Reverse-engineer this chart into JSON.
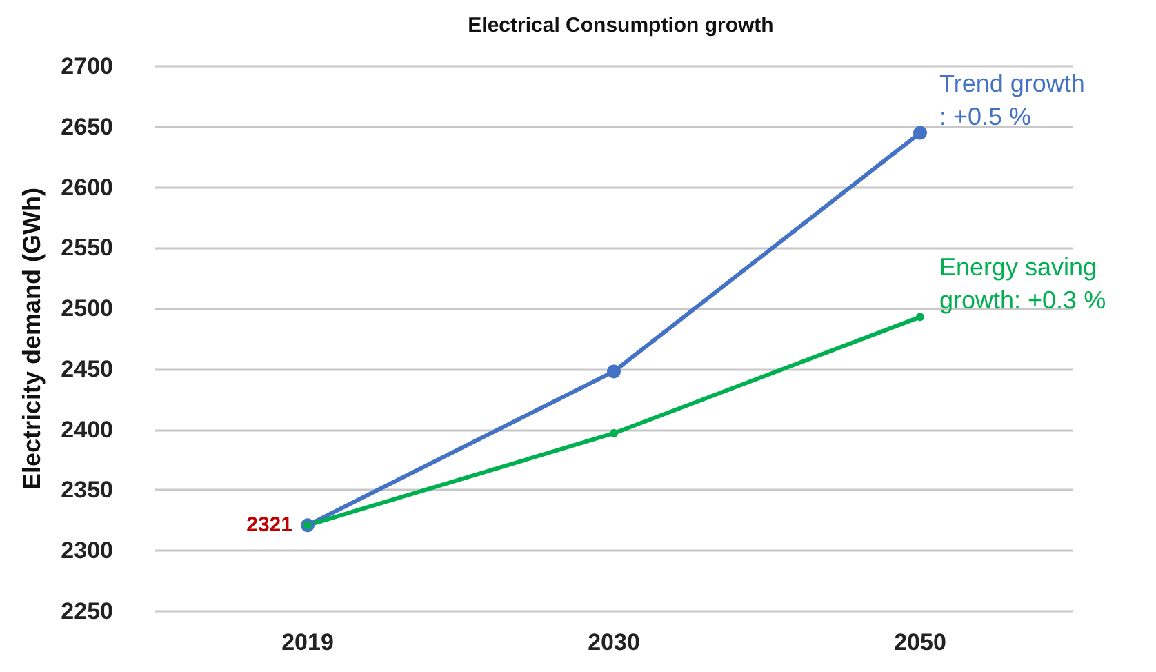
{
  "chart_data": {
    "type": "line",
    "title": "Electrical Consumption growth",
    "ylabel": "Electricity demand (GWh)",
    "categories": [
      "2019",
      "2030",
      "2050"
    ],
    "series": [
      {
        "name": "Trend growth\n: +0.5 %",
        "color": "#4472c4",
        "values": [
          2321,
          2448,
          2645
        ]
      },
      {
        "name": "Energy saving\ngrowth: +0.3 %",
        "color": "#00b050",
        "values": [
          2321,
          2397,
          2493
        ],
        "value_labels": [
          "2321",
          null,
          null
        ]
      }
    ],
    "ylim": [
      2250,
      2700
    ],
    "yticks": [
      2250,
      2300,
      2350,
      2400,
      2450,
      2500,
      2550,
      2600,
      2650,
      2700
    ],
    "grid": "y",
    "legend": false,
    "marker": "circle",
    "line_style": "solid"
  }
}
